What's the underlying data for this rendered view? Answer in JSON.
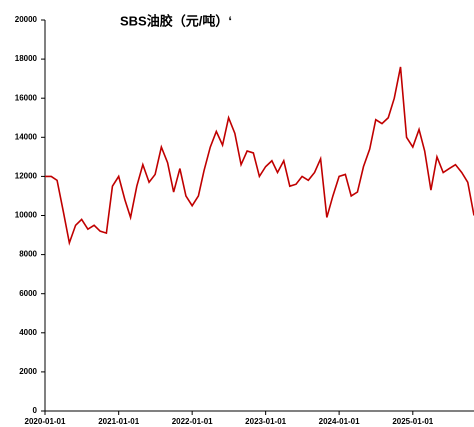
{
  "chart_data": {
    "type": "line",
    "title": "SBS油胶（元/吨）‘",
    "x": [
      "2020-01-01",
      "2020-02-01",
      "2020-03-01",
      "2020-04-01",
      "2020-05-01",
      "2020-06-01",
      "2020-07-01",
      "2020-08-01",
      "2020-09-01",
      "2020-10-01",
      "2020-11-01",
      "2020-12-01",
      "2021-01-01",
      "2021-02-01",
      "2021-03-01",
      "2021-04-01",
      "2021-05-01",
      "2021-06-01",
      "2021-07-01",
      "2021-08-01",
      "2021-09-01",
      "2021-10-01",
      "2021-11-01",
      "2021-12-01",
      "2022-01-01",
      "2022-02-01",
      "2022-03-01",
      "2022-04-01",
      "2022-05-01",
      "2022-06-01",
      "2022-07-01",
      "2022-08-01",
      "2022-09-01",
      "2022-10-01",
      "2022-11-01",
      "2022-12-01",
      "2023-01-01",
      "2023-02-01",
      "2023-03-01",
      "2023-04-01",
      "2023-05-01",
      "2023-06-01",
      "2023-07-01",
      "2023-08-01",
      "2023-09-01",
      "2023-10-01",
      "2023-11-01",
      "2023-12-01",
      "2024-01-01",
      "2024-02-01",
      "2024-03-01",
      "2024-04-01",
      "2024-05-01",
      "2024-06-01",
      "2024-07-01",
      "2024-08-01",
      "2024-09-01",
      "2024-10-01",
      "2024-11-01",
      "2024-12-01",
      "2025-01-01",
      "2025-02-01",
      "2025-03-01",
      "2025-04-01",
      "2025-05-01",
      "2025-06-01",
      "2025-07-01",
      "2025-08-01",
      "2025-09-01",
      "2025-10-01",
      "2025-11-01"
    ],
    "series": [
      {
        "name": "SBS油胶",
        "color": "#c00000",
        "values": [
          12000,
          12000,
          11800,
          10200,
          8600,
          9500,
          9800,
          9300,
          9500,
          9200,
          9100,
          11500,
          12000,
          10800,
          9900,
          11500,
          12600,
          11700,
          12100,
          13500,
          12700,
          11200,
          12400,
          11000,
          10500,
          11000,
          12300,
          13500,
          14300,
          13600,
          15000,
          14200,
          12600,
          13300,
          13200,
          12000,
          12500,
          12800,
          12200,
          12800,
          11500,
          11600,
          12000,
          11800,
          12200,
          12900,
          9900,
          11000,
          12000,
          12100,
          11000,
          11200,
          12500,
          13400,
          14900,
          14700,
          15000,
          16000,
          17600,
          14000,
          13500,
          14400,
          13300,
          11300,
          13000,
          12200,
          12400,
          12600,
          12200,
          11700,
          10000
        ]
      }
    ],
    "xlim": [
      "2020-01-01",
      "2025-11-01"
    ],
    "xticks": [
      "2020-01-01",
      "2021-01-01",
      "2022-01-01",
      "2023-01-01",
      "2024-01-01",
      "2025-01-01"
    ],
    "ylim": [
      0,
      20000
    ],
    "yticks": [
      0,
      2000,
      4000,
      6000,
      8000,
      10000,
      12000,
      14000,
      16000,
      18000,
      20000
    ],
    "grid": false
  }
}
